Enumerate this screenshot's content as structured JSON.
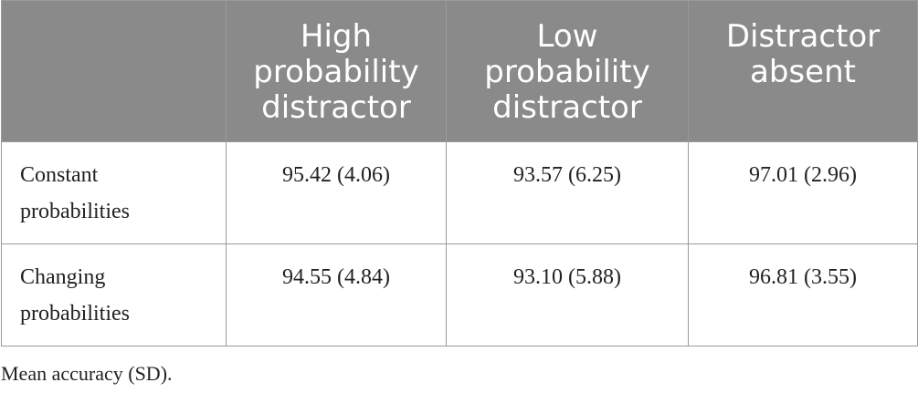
{
  "table": {
    "corner": "",
    "columns": [
      "High\nprobability\ndistractor",
      "Low\nprobability\ndistractor",
      "Distractor\nabsent"
    ],
    "rows": [
      {
        "label": "Constant\nprobabilities",
        "cells": [
          "95.42 (4.06)",
          "93.57 (6.25)",
          "97.01 (2.96)"
        ]
      },
      {
        "label": "Changing\nprobabilities",
        "cells": [
          "94.55 (4.84)",
          "93.10 (5.88)",
          "96.81 (3.55)"
        ]
      }
    ]
  },
  "note": "Mean accuracy (SD)."
}
